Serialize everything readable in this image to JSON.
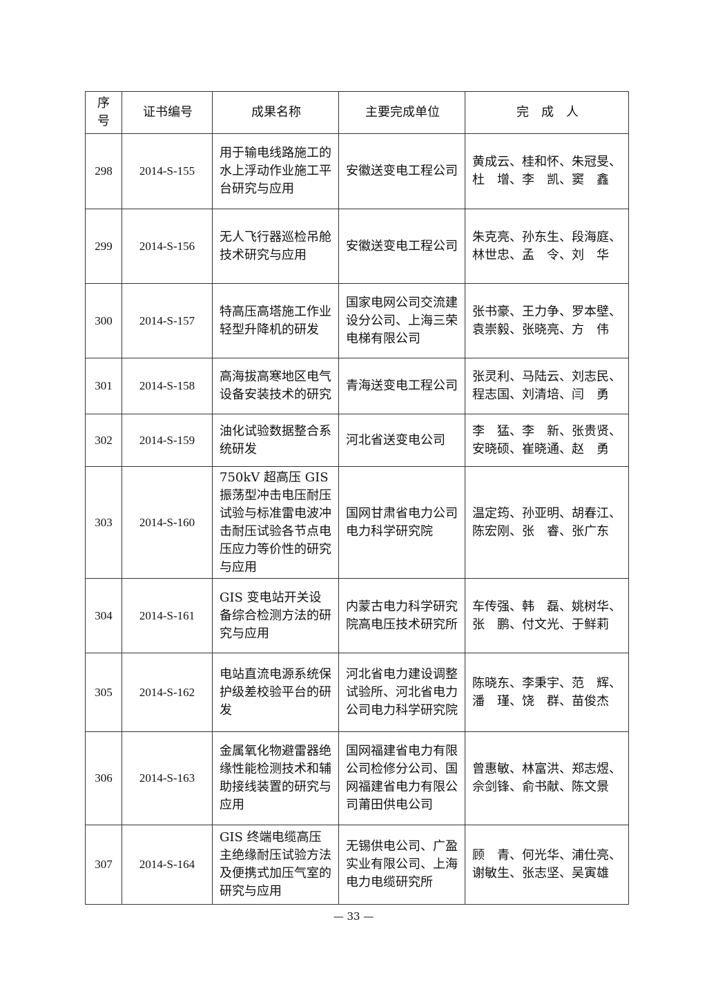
{
  "table": {
    "headers": [
      "序号",
      "证书编号",
      "成果名称",
      "主要完成单位",
      "完　成　人"
    ],
    "rows": [
      {
        "no": "298",
        "cert": "2014-S-155",
        "name": "用于输电线路施工的水上浮动作业施工平台研究与应用",
        "unit": "安徽送变电工程公司",
        "people": "黄成云、桂和怀、朱冠旻、杜　增、李　凯、窦　鑫"
      },
      {
        "no": "299",
        "cert": "2014-S-156",
        "name": "无人飞行器巡检吊舱技术研究与应用",
        "unit": "安徽送变电工程公司",
        "people": "朱克亮、孙东生、段海庭、林世忠、孟　令、刘　华"
      },
      {
        "no": "300",
        "cert": "2014-S-157",
        "name": "特高压高塔施工作业轻型升降机的研发",
        "unit": "国家电网公司交流建设分公司、上海三荣电梯有限公司",
        "people": "张书豪、王力争、罗本壁、袁崇毅、张晓亮、方　伟"
      },
      {
        "no": "301",
        "cert": "2014-S-158",
        "name": "高海拔高寒地区电气设备安装技术的研究",
        "unit": "青海送变电工程公司",
        "people": "张灵利、马陆云、刘志民、程志国、刘清培、闫　勇"
      },
      {
        "no": "302",
        "cert": "2014-S-159",
        "name": "油化试验数据整合系统研发",
        "unit": "河北省送变电公司",
        "people": "李　猛、李　新、张贵贤、安晓硕、崔晓通、赵　勇"
      },
      {
        "no": "303",
        "cert": "2014-S-160",
        "name": "750kV 超高压 GIS 振荡型冲击电压耐压试验与标准雷电波冲击耐压试验各节点电压应力等价性的研究与应用",
        "unit": "国网甘肃省电力公司电力科学研究院",
        "people": "温定筠、孙亚明、胡春江、陈宏刚、张　睿、张广东"
      },
      {
        "no": "304",
        "cert": "2014-S-161",
        "name": "GIS 变电站开关设备综合检测方法的研究与应用",
        "unit": "内蒙古电力科学研究院高电压技术研究所",
        "people": "车传强、韩　磊、姚树华、张　鹏、付文光、于鲜莉"
      },
      {
        "no": "305",
        "cert": "2014-S-162",
        "name": "电站直流电源系统保护级差校验平台的研发",
        "unit": "河北省电力建设调整试验所、河北省电力公司电力科学研究院",
        "people": "陈晓东、李秉宇、范　辉、潘　瑾、饶　群、苗俊杰"
      },
      {
        "no": "306",
        "cert": "2014-S-163",
        "name": "金属氧化物避雷器绝缘性能检测技术和辅助接线装置的研究与应用",
        "unit": "国网福建省电力有限公司检修分公司、国网福建省电力有限公司莆田供电公司",
        "people": "曾惠敏、林富洪、郑志煜、佘剑锋、俞书献、陈文景"
      },
      {
        "no": "307",
        "cert": "2014-S-164",
        "name": "GIS 终端电缆高压主绝缘耐压试验方法及便携式加压气室的研究与应用",
        "unit": "无锡供电公司、广盈实业有限公司、上海电力电缆研究所",
        "people": "顾　青、何光华、浦仕亮、谢敏生、张志坚、吴寅雄"
      }
    ]
  },
  "footer": {
    "page": "— 33 —"
  }
}
